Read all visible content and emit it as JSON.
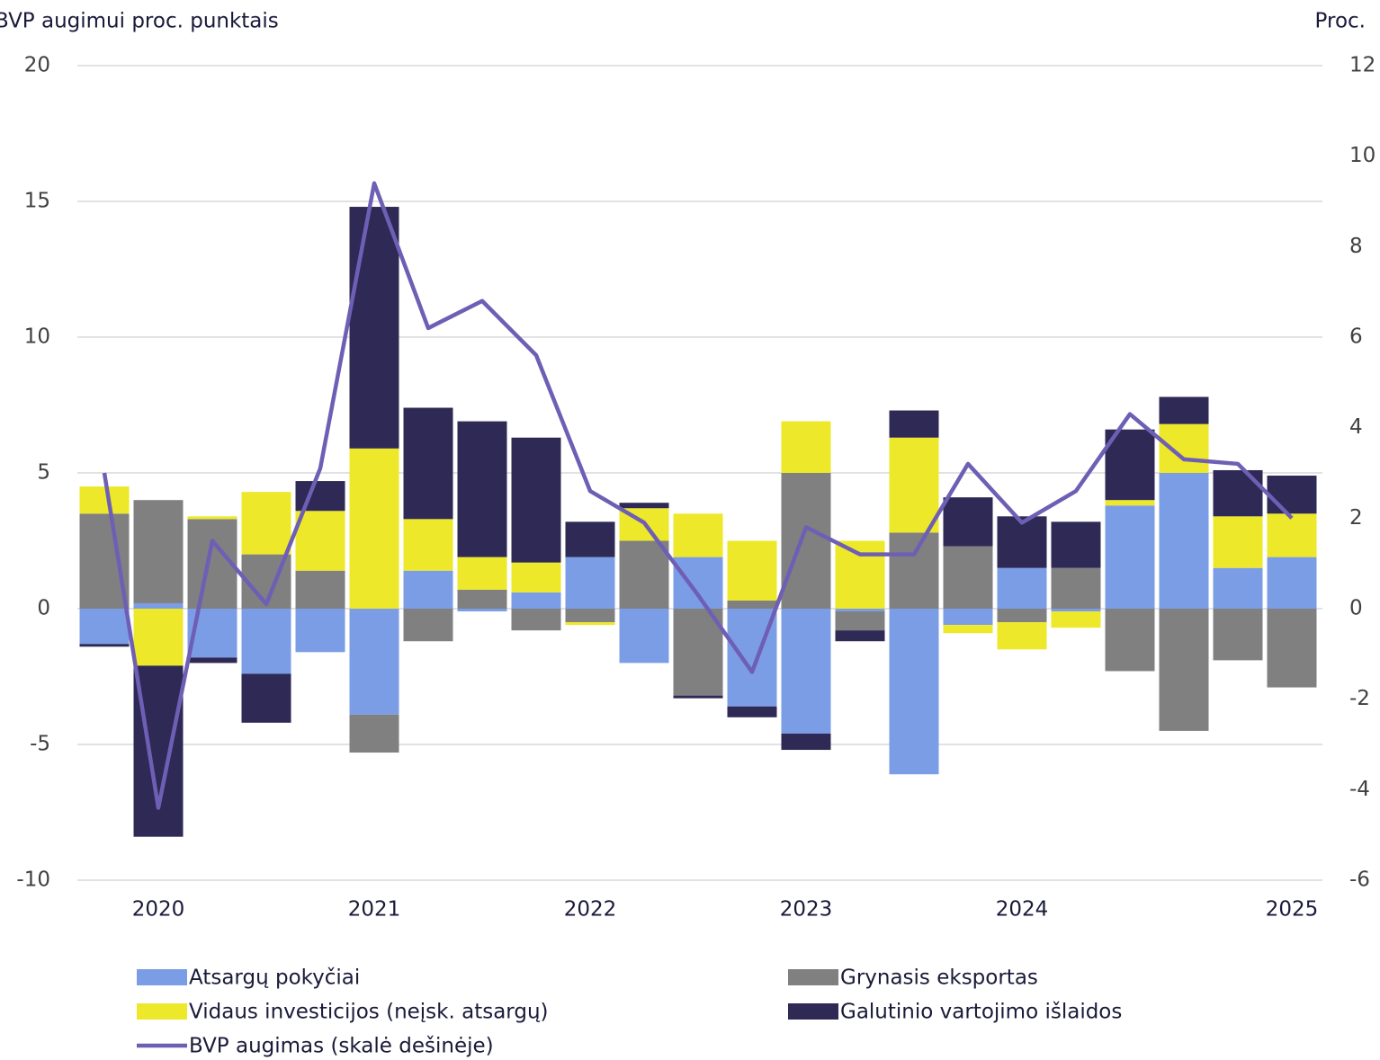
{
  "chart_data": {
    "type": "bar",
    "stacked": true,
    "ylabel": "BVP augimui proc. punktais",
    "y2label": "Proc.",
    "categories": [
      null,
      "2020",
      null,
      null,
      null,
      "2021",
      null,
      null,
      null,
      "2022",
      null,
      null,
      null,
      "2023",
      null,
      null,
      null,
      "2024",
      null,
      null,
      null,
      null,
      "2025"
    ],
    "ylim": [
      -10,
      20
    ],
    "yticks": [
      -10,
      -5,
      0,
      5,
      10,
      15,
      20
    ],
    "y2lim": [
      -6,
      12
    ],
    "y2ticks": [
      -6,
      -4,
      -2,
      0,
      2,
      4,
      6,
      8,
      10,
      12
    ],
    "grid": true,
    "series": [
      {
        "name": "Atsargų pokyčiai",
        "color": "#7b9de6",
        "values": [
          -1.3,
          0.2,
          -1.8,
          -2.4,
          -1.6,
          -3.9,
          1.4,
          -0.1,
          0.6,
          1.9,
          -2.0,
          1.9,
          -3.6,
          -4.6,
          -0.1,
          -6.1,
          -0.6,
          1.5,
          -0.1,
          3.8,
          5.0,
          1.5,
          1.9
        ]
      },
      {
        "name": "Grynasis eksportas",
        "color": "#808080",
        "values": [
          3.5,
          3.8,
          3.3,
          2.0,
          1.4,
          -1.4,
          -1.2,
          0.7,
          -0.8,
          -0.5,
          2.5,
          -3.2,
          0.3,
          5.0,
          -0.7,
          2.8,
          2.3,
          -0.5,
          1.5,
          -2.3,
          -4.5,
          -1.9,
          -2.9
        ]
      },
      {
        "name": "Vidaus investicijos (neįsk. atsargų)",
        "color": "#ede82a",
        "values": [
          1.0,
          -2.1,
          0.1,
          2.3,
          2.2,
          5.9,
          1.9,
          1.2,
          1.1,
          -0.1,
          1.2,
          1.6,
          2.2,
          1.9,
          2.5,
          3.5,
          -0.3,
          -1.0,
          -0.6,
          0.2,
          1.8,
          1.9,
          1.6
        ]
      },
      {
        "name": "Galutinio vartojimo išlaidos",
        "color": "#2e2955",
        "values": [
          -0.1,
          -6.3,
          -0.2,
          -1.8,
          1.1,
          8.9,
          4.1,
          5.0,
          4.6,
          1.3,
          0.2,
          -0.1,
          -0.4,
          -0.6,
          -0.4,
          1.0,
          1.8,
          1.9,
          1.7,
          2.6,
          1.0,
          1.7,
          1.4
        ]
      },
      {
        "name": "BVP augimas (skalė dešinėje)",
        "type": "line",
        "axis": "y2",
        "color": "#6e5fb5",
        "values": [
          3.0,
          -4.4,
          1.5,
          0.1,
          3.1,
          9.4,
          6.2,
          6.8,
          5.6,
          2.6,
          1.9,
          0.3,
          -1.4,
          1.8,
          1.2,
          1.2,
          3.2,
          1.9,
          2.6,
          4.3,
          3.3,
          3.2,
          2.0
        ]
      }
    ]
  }
}
